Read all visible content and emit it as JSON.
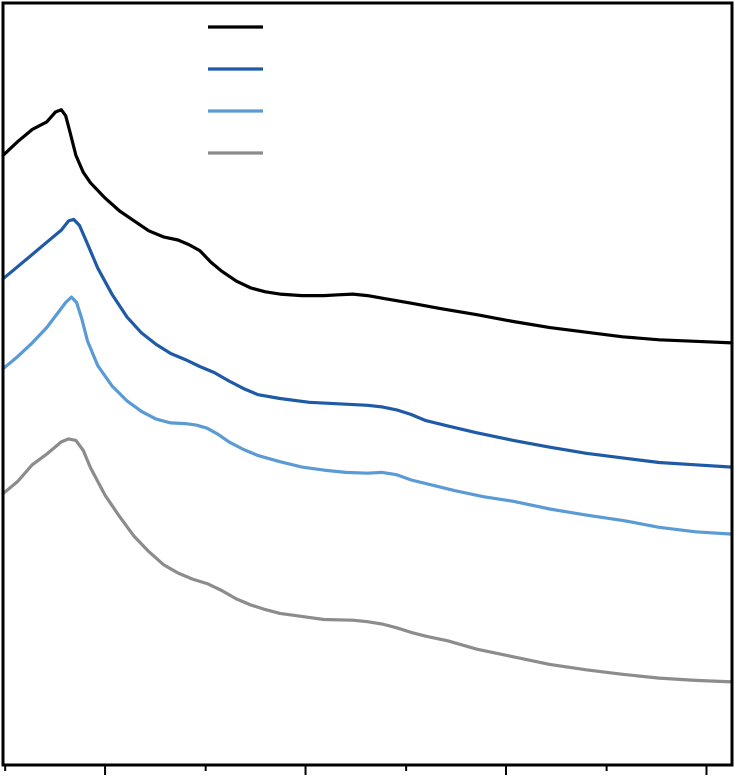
{
  "chart_data": {
    "type": "line",
    "title": "",
    "xlabel": "",
    "ylabel": "",
    "xlim": [
      0,
      100
    ],
    "ylim": [
      0,
      100
    ],
    "grid": false,
    "legend": "top-center",
    "major_ticks": [
      14,
      41.5,
      69,
      96.5
    ],
    "minor_ticks": [
      0.3,
      27.8,
      55.3,
      82.8
    ],
    "series": [
      {
        "color": "#000000",
        "points": [
          [
            0,
            80
          ],
          [
            2,
            81.8
          ],
          [
            4,
            83.4
          ],
          [
            6,
            84.4
          ],
          [
            7.2,
            85.7
          ],
          [
            8,
            86
          ],
          [
            8.6,
            85.2
          ],
          [
            9.2,
            83
          ],
          [
            10,
            80
          ],
          [
            11,
            77.8
          ],
          [
            12,
            76.4
          ],
          [
            14,
            74.4
          ],
          [
            16,
            72.7
          ],
          [
            18,
            71.4
          ],
          [
            20,
            70.1
          ],
          [
            22,
            69.3
          ],
          [
            24,
            68.9
          ],
          [
            25.5,
            68.3
          ],
          [
            27,
            67.5
          ],
          [
            28.5,
            66
          ],
          [
            30,
            64.8
          ],
          [
            32,
            63.5
          ],
          [
            34,
            62.6
          ],
          [
            36,
            62.1
          ],
          [
            38,
            61.8
          ],
          [
            41,
            61.6
          ],
          [
            44,
            61.6
          ],
          [
            46,
            61.7
          ],
          [
            48,
            61.8
          ],
          [
            50,
            61.6
          ],
          [
            53,
            61.1
          ],
          [
            56,
            60.6
          ],
          [
            60,
            59.9
          ],
          [
            65,
            59.1
          ],
          [
            70,
            58.2
          ],
          [
            75,
            57.4
          ],
          [
            80,
            56.8
          ],
          [
            85,
            56.2
          ],
          [
            90,
            55.8
          ],
          [
            95,
            55.6
          ],
          [
            100,
            55.4
          ]
        ]
      },
      {
        "color": "#1f5aa6",
        "points": [
          [
            0,
            63.8
          ],
          [
            2,
            65.4
          ],
          [
            4,
            67
          ],
          [
            6,
            68.6
          ],
          [
            8,
            70.2
          ],
          [
            9,
            71.4
          ],
          [
            9.7,
            71.6
          ],
          [
            10.5,
            70.8
          ],
          [
            11.5,
            68.6
          ],
          [
            13,
            65.2
          ],
          [
            15,
            61.7
          ],
          [
            17,
            58.8
          ],
          [
            19,
            56.7
          ],
          [
            21,
            55.2
          ],
          [
            23,
            54
          ],
          [
            25,
            53.2
          ],
          [
            27,
            52.3
          ],
          [
            29,
            51.5
          ],
          [
            31,
            50.4
          ],
          [
            33,
            49.4
          ],
          [
            35,
            48.6
          ],
          [
            38,
            48.1
          ],
          [
            42,
            47.6
          ],
          [
            46,
            47.4
          ],
          [
            50,
            47.2
          ],
          [
            52,
            47
          ],
          [
            54,
            46.6
          ],
          [
            56,
            46
          ],
          [
            58,
            45.2
          ],
          [
            61,
            44.5
          ],
          [
            65,
            43.6
          ],
          [
            70,
            42.6
          ],
          [
            75,
            41.7
          ],
          [
            80,
            40.9
          ],
          [
            85,
            40.3
          ],
          [
            90,
            39.7
          ],
          [
            95,
            39.4
          ],
          [
            100,
            39.1
          ]
        ]
      },
      {
        "color": "#5b9bd5",
        "points": [
          [
            0,
            52
          ],
          [
            2,
            53.6
          ],
          [
            4,
            55.4
          ],
          [
            6,
            57.4
          ],
          [
            7.5,
            59.3
          ],
          [
            8.6,
            60.7
          ],
          [
            9.4,
            61.4
          ],
          [
            10.1,
            60.7
          ],
          [
            10.8,
            58.6
          ],
          [
            11.6,
            55.6
          ],
          [
            13,
            52.4
          ],
          [
            15,
            49.7
          ],
          [
            17,
            47.8
          ],
          [
            19,
            46.4
          ],
          [
            21,
            45.4
          ],
          [
            23,
            44.9
          ],
          [
            25,
            44.8
          ],
          [
            26.5,
            44.6
          ],
          [
            28,
            44.2
          ],
          [
            29.5,
            43.4
          ],
          [
            31,
            42.4
          ],
          [
            33,
            41.4
          ],
          [
            35,
            40.6
          ],
          [
            38,
            39.8
          ],
          [
            41,
            39.1
          ],
          [
            44,
            38.7
          ],
          [
            47,
            38.4
          ],
          [
            50,
            38.3
          ],
          [
            52,
            38.4
          ],
          [
            54,
            38.1
          ],
          [
            56,
            37.4
          ],
          [
            59,
            36.7
          ],
          [
            62,
            36
          ],
          [
            66,
            35.2
          ],
          [
            70,
            34.6
          ],
          [
            75,
            33.6
          ],
          [
            80,
            32.8
          ],
          [
            85,
            32.1
          ],
          [
            90,
            31.2
          ],
          [
            95,
            30.6
          ],
          [
            100,
            30.3
          ]
        ]
      },
      {
        "color": "#8c8c8c",
        "points": [
          [
            0,
            35.6
          ],
          [
            2,
            37.2
          ],
          [
            4,
            39.4
          ],
          [
            6,
            40.8
          ],
          [
            8,
            42.4
          ],
          [
            9,
            42.8
          ],
          [
            10,
            42.6
          ],
          [
            11,
            41.3
          ],
          [
            12,
            39
          ],
          [
            14,
            35.4
          ],
          [
            16,
            32.6
          ],
          [
            18,
            30
          ],
          [
            20,
            28
          ],
          [
            22,
            26.3
          ],
          [
            24,
            25.2
          ],
          [
            26,
            24.4
          ],
          [
            28,
            23.8
          ],
          [
            30,
            22.9
          ],
          [
            32,
            21.8
          ],
          [
            34,
            21
          ],
          [
            36,
            20.4
          ],
          [
            38,
            19.9
          ],
          [
            41,
            19.5
          ],
          [
            44,
            19.1
          ],
          [
            48,
            19
          ],
          [
            50,
            18.8
          ],
          [
            52,
            18.5
          ],
          [
            54,
            18
          ],
          [
            56,
            17.4
          ],
          [
            58,
            16.9
          ],
          [
            61,
            16.3
          ],
          [
            65,
            15.2
          ],
          [
            70,
            14.2
          ],
          [
            75,
            13.2
          ],
          [
            80,
            12.5
          ],
          [
            85,
            11.9
          ],
          [
            90,
            11.4
          ],
          [
            95,
            11.1
          ],
          [
            100,
            10.9
          ]
        ]
      }
    ]
  }
}
